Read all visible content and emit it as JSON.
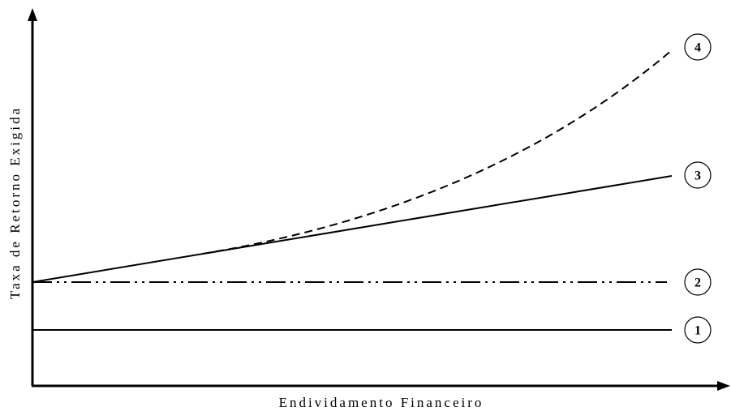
{
  "y_axis_label": "Taxa de Retorno Exigida",
  "x_axis_label": "Endividamento Financeiro",
  "curves": [
    {
      "label": "1"
    },
    {
      "label": "2"
    },
    {
      "label": "3"
    },
    {
      "label": "4"
    }
  ]
}
